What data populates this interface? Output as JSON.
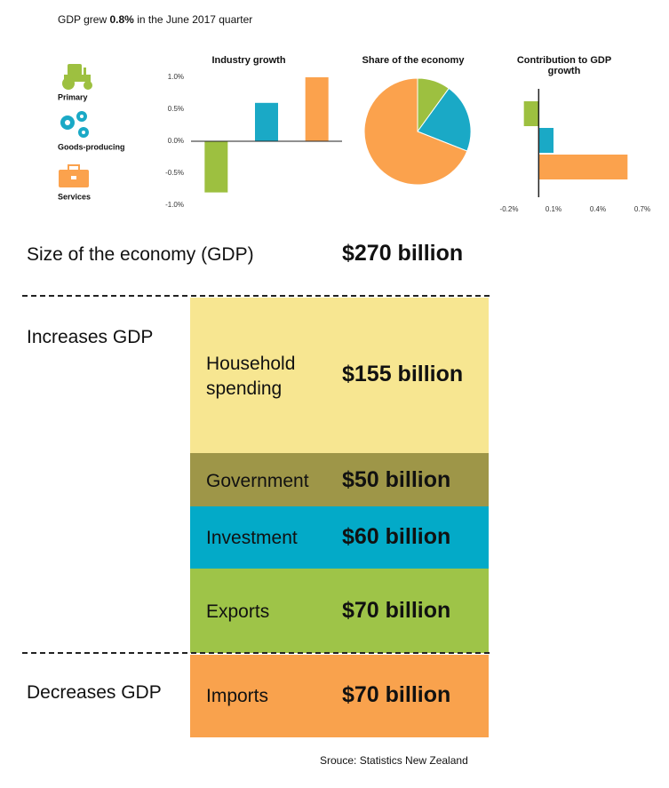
{
  "headline": {
    "before": "GDP grew",
    "highlight": "0.8%",
    "after": "in the June 2017 quarter"
  },
  "chart_data": [
    {
      "type": "bar",
      "title": "Industry growth",
      "categories": [
        "Primary",
        "Goods-producing",
        "Services"
      ],
      "colors": [
        "#9dc040",
        "#1aa9c6",
        "#fba24d"
      ],
      "values": [
        -0.8,
        0.6,
        1.0
      ],
      "ylim": [
        -1.0,
        1.0
      ],
      "yticks": [
        {
          "value": 1.0,
          "label": "1.0%"
        },
        {
          "value": 0.5,
          "label": "0.5%"
        },
        {
          "value": 0,
          "label": "0.0%"
        },
        {
          "value": -0.5,
          "label": "-0.5%"
        },
        {
          "value": -1.0,
          "label": "-1.0%"
        }
      ]
    },
    {
      "type": "pie",
      "title": "Share of the economy",
      "categories": [
        null,
        null,
        null
      ],
      "colors": [
        "#9dc040",
        "#1aa9c6",
        "#fba24d"
      ],
      "values": [
        10,
        21,
        69
      ]
    },
    {
      "type": "hbar",
      "title": "Contribution to GDP growth",
      "categories": [
        null,
        null,
        null
      ],
      "colors": [
        "#9dc040",
        "#1aa9c6",
        "#fba24d"
      ],
      "values": [
        -0.1,
        0.1,
        0.6
      ],
      "xlim": [
        -0.2,
        0.7
      ],
      "xticks": [
        {
          "value": -0.2,
          "label": "-0.2%"
        },
        {
          "value": 0.1,
          "label": "0.1%"
        },
        {
          "value": 0.4,
          "label": "0.4%"
        },
        {
          "value": 0.7,
          "label": "0.7%"
        }
      ]
    }
  ],
  "breakdown": {
    "total": {
      "label": "Size of the economy (GDP)",
      "value": "$270 billion"
    },
    "increases": {
      "label": "Increases GDP",
      "items": [
        {
          "label": "Household spending",
          "value": "$155 billion"
        },
        {
          "label": "Government",
          "value": "$50 billion"
        },
        {
          "label": "Investment",
          "value": "$60 billion"
        },
        {
          "label": "Exports",
          "value": "$70 billion"
        }
      ]
    },
    "decreases": {
      "label": "Decreases GDP",
      "items": [
        {
          "label": "Imports",
          "value": "$70 billion"
        }
      ]
    }
  },
  "source": "Srouce: Statistics New Zealand"
}
